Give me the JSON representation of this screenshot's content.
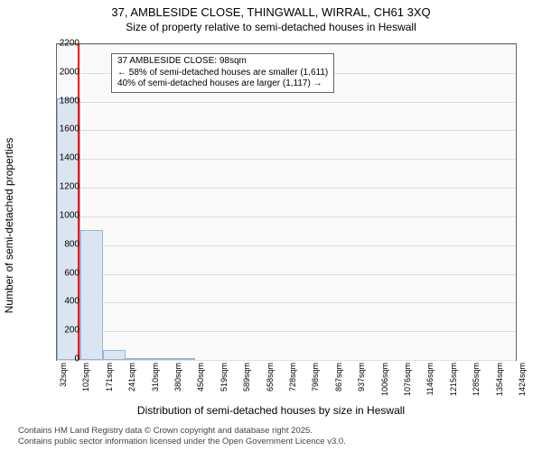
{
  "title": {
    "line1": "37, AMBLESIDE CLOSE, THINGWALL, WIRRAL, CH61 3XQ",
    "line2": "Size of property relative to semi-detached houses in Heswall",
    "fontsize": 13
  },
  "chart": {
    "type": "histogram",
    "ylabel": "Number of semi-detached properties",
    "xlabel": "Distribution of semi-detached houses by size in Heswall",
    "ylim": [
      0,
      2200
    ],
    "ytick_step": 200,
    "yticks": [
      0,
      200,
      400,
      600,
      800,
      1000,
      1200,
      1400,
      1600,
      1800,
      2000,
      2200
    ],
    "xticks": [
      "32sqm",
      "102sqm",
      "171sqm",
      "241sqm",
      "310sqm",
      "380sqm",
      "450sqm",
      "519sqm",
      "589sqm",
      "658sqm",
      "728sqm",
      "798sqm",
      "867sqm",
      "937sqm",
      "1006sqm",
      "1076sqm",
      "1146sqm",
      "1215sqm",
      "1285sqm",
      "1354sqm",
      "1424sqm"
    ],
    "xlim": [
      32,
      1424
    ],
    "bar_color": "#dbe5f1",
    "bar_border": "#99b3d9",
    "background_color": "#fafafa",
    "grid_color": "#dddddd",
    "marker_color": "#ff0000",
    "marker_value": 98,
    "bars": [
      {
        "x0": 32,
        "x1": 102,
        "count": 1820
      },
      {
        "x0": 102,
        "x1": 171,
        "count": 905
      },
      {
        "x0": 171,
        "x1": 241,
        "count": 70
      },
      {
        "x0": 241,
        "x1": 310,
        "count": 10
      },
      {
        "x0": 310,
        "x1": 380,
        "count": 3
      },
      {
        "x0": 380,
        "x1": 450,
        "count": 2
      }
    ]
  },
  "annotation": {
    "line1": "37 AMBLESIDE CLOSE: 98sqm",
    "line2": "← 58% of semi-detached houses are smaller (1,611)",
    "line3": "40% of semi-detached houses are larger (1,117) →"
  },
  "footer": {
    "line1": "Contains HM Land Registry data © Crown copyright and database right 2025.",
    "line2": "Contains public sector information licensed under the Open Government Licence v3.0."
  }
}
